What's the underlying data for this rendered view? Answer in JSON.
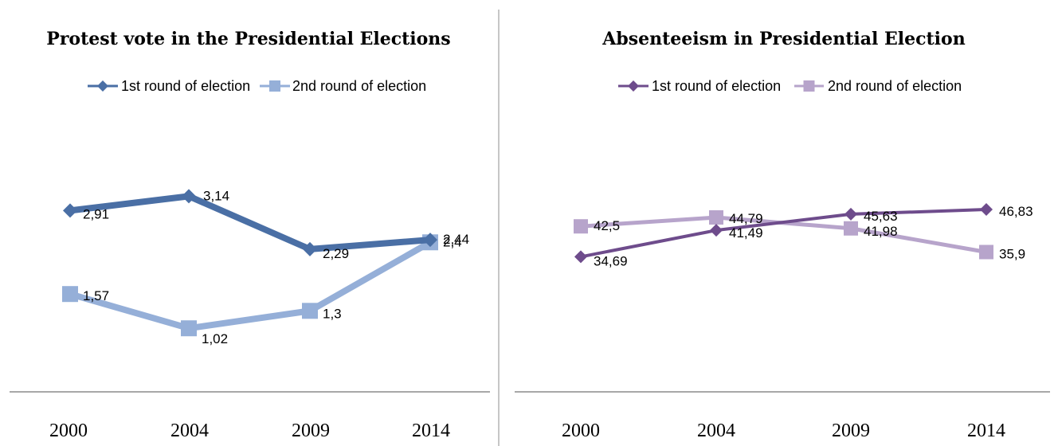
{
  "chart_data": [
    {
      "type": "line",
      "title": "Protest vote in the Presidential Elections",
      "categories": [
        "2000",
        "2004",
        "2009",
        "2014"
      ],
      "series": [
        {
          "name": "1st round of election",
          "values": [
            2.91,
            3.14,
            2.29,
            2.44
          ],
          "labels": [
            "2,91",
            "3,14",
            "2,29",
            "2,44"
          ],
          "color": "#4A6FA5",
          "marker": "diamond"
        },
        {
          "name": "2nd round of election",
          "values": [
            1.57,
            1.02,
            1.3,
            2.4
          ],
          "labels": [
            "1,57",
            "1,02",
            "1,3",
            "2,4"
          ],
          "color": "#95AFD8",
          "marker": "square"
        }
      ],
      "ylim": [
        0,
        4.5
      ],
      "grid": false,
      "legend": "top"
    },
    {
      "type": "line",
      "title": "Absenteeism in Presidential Election",
      "categories": [
        "2000",
        "2004",
        "2009",
        "2014"
      ],
      "series": [
        {
          "name": "1st round of election",
          "values": [
            34.69,
            41.49,
            45.63,
            46.83
          ],
          "labels": [
            "34,69",
            "41,49",
            "45,63",
            "46,83"
          ],
          "color": "#6E4C8C",
          "marker": "diamond"
        },
        {
          "name": "2nd round of election",
          "values": [
            42.5,
            44.79,
            41.98,
            35.9
          ],
          "labels": [
            "42,5",
            "44,79",
            "41,98",
            "35,9"
          ],
          "color": "#B7A4CB",
          "marker": "square"
        }
      ],
      "ylim": [
        0,
        72
      ],
      "grid": false,
      "legend": "top"
    }
  ]
}
